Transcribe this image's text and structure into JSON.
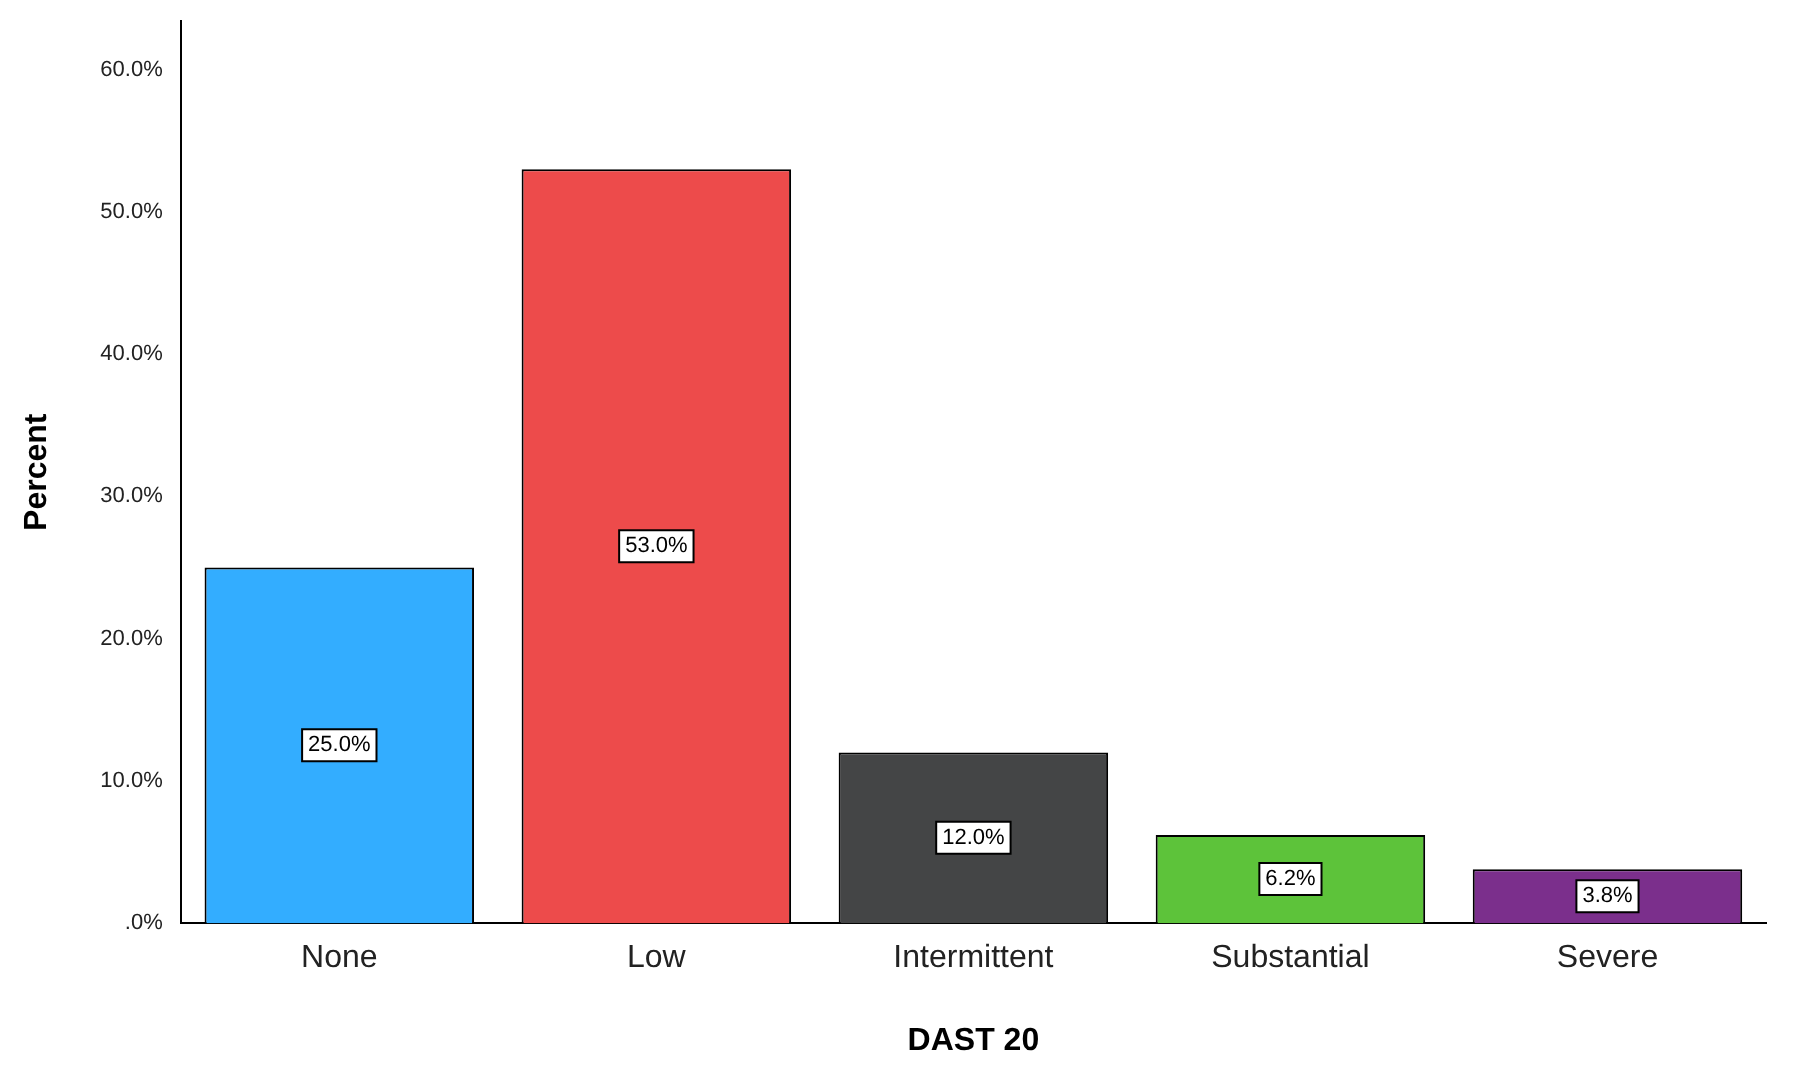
{
  "chart_data": {
    "type": "bar",
    "xlabel": "DAST 20",
    "ylabel": "Percent",
    "categories": [
      "None",
      "Low",
      "Intermittent",
      "Substantial",
      "Severe"
    ],
    "values": [
      25.0,
      53.0,
      12.0,
      6.2,
      3.8
    ],
    "colors": [
      "#33adff",
      "#ed4b4b",
      "#444546",
      "#5dc33a",
      "#7b2f8c"
    ],
    "value_labels": [
      "25.0%",
      "53.0%",
      "12.0%",
      "6.2%",
      "3.8%"
    ],
    "ylim": [
      0,
      63.4
    ],
    "yticks": [
      {
        "value": 0,
        "label": ".0%"
      },
      {
        "value": 10,
        "label": "10.0%"
      },
      {
        "value": 20,
        "label": "20.0%"
      },
      {
        "value": 30,
        "label": "30.0%"
      },
      {
        "value": 40,
        "label": "40.0%"
      },
      {
        "value": 50,
        "label": "50.0%"
      },
      {
        "value": 60,
        "label": "60.0%"
      }
    ],
    "grid": false,
    "legend": false
  }
}
